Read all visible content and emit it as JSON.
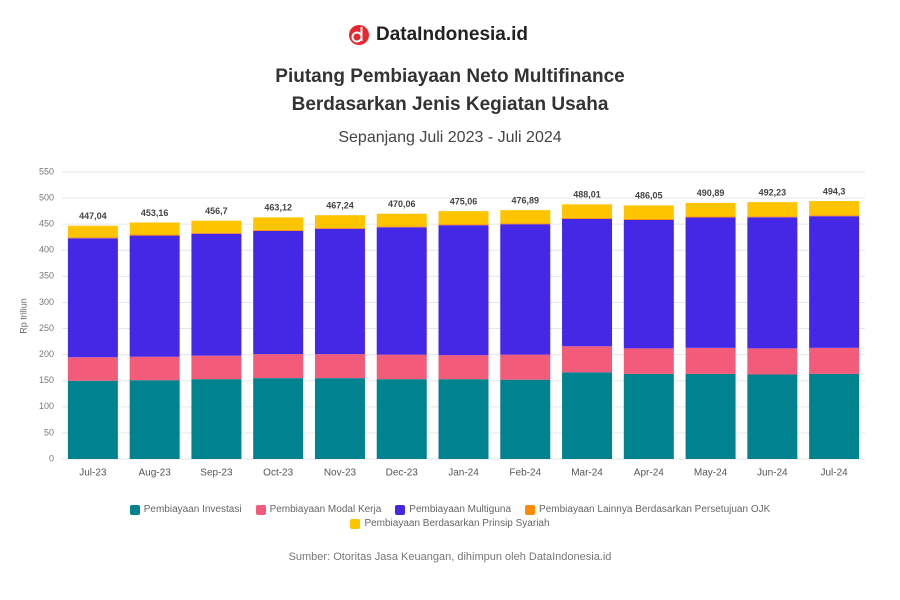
{
  "brand": "DataIndonesia.id",
  "source": "Sumber: Otoritas Jasa Keuangan, dihimpun oleh DataIndonesia.id",
  "chart_data": {
    "type": "stacked-bar",
    "title": [
      "Piutang Pembiayaan Neto Multifinance",
      "Berdasarkan Jenis Kegiatan Usaha"
    ],
    "subtitle": "Sepanjang Juli 2023 - Juli 2024",
    "ylabel": "Rp triliun",
    "categories": [
      "Jul-23",
      "Aug-23",
      "Sep-23",
      "Oct-23",
      "Nov-23",
      "Dec-23",
      "Jan-24",
      "Feb-24",
      "Mar-24",
      "Apr-24",
      "May-24",
      "Jun-24",
      "Jul-24"
    ],
    "series": [
      {
        "name": "Pembiayaan Investasi",
        "color": "#00838f",
        "values": [
          150,
          151,
          153,
          155,
          155,
          153,
          153,
          152,
          166,
          163,
          163,
          162,
          163
        ]
      },
      {
        "name": "Pembiayaan Modal Kerja",
        "color": "#f25b7a",
        "values": [
          45,
          45,
          45,
          46,
          46,
          47,
          46,
          48,
          50,
          49,
          50,
          50,
          50
        ]
      },
      {
        "name": "Pembiayaan Multiguna",
        "color": "#4527e6",
        "values": [
          228.04,
          232.16,
          233.7,
          236.12,
          240.24,
          244.06,
          249.06,
          249.89,
          244.01,
          246.05,
          249.89,
          251.23,
          252.3
        ]
      },
      {
        "name": "Pembiayaan Lainnya Berdasarkan Persetujuan OJK",
        "color": "#ff8c00",
        "values": [
          2,
          2,
          2,
          2,
          2,
          2,
          2,
          2,
          2,
          2,
          2,
          2,
          2
        ]
      },
      {
        "name": "Pembiayaan Berdasarkan Prinsip Syariah",
        "color": "#ffc400",
        "values": [
          22,
          23,
          23,
          24,
          24,
          24,
          25,
          25,
          26,
          26,
          26,
          27,
          27
        ]
      }
    ],
    "totals": [
      447.04,
      453.16,
      456.7,
      463.12,
      467.24,
      470.06,
      475.06,
      476.89,
      488.01,
      486.05,
      490.89,
      492.23,
      494.3
    ],
    "total_labels": [
      "447,04",
      "453,16",
      "456,7",
      "463,12",
      "467,24",
      "470,06",
      "475,06",
      "476,89",
      "488,01",
      "486,05",
      "490,89",
      "492,23",
      "494,3"
    ],
    "ylim": [
      0,
      550
    ],
    "yticks": [
      0,
      50,
      100,
      150,
      200,
      250,
      300,
      350,
      400,
      450,
      500,
      550
    ],
    "grid": true
  }
}
